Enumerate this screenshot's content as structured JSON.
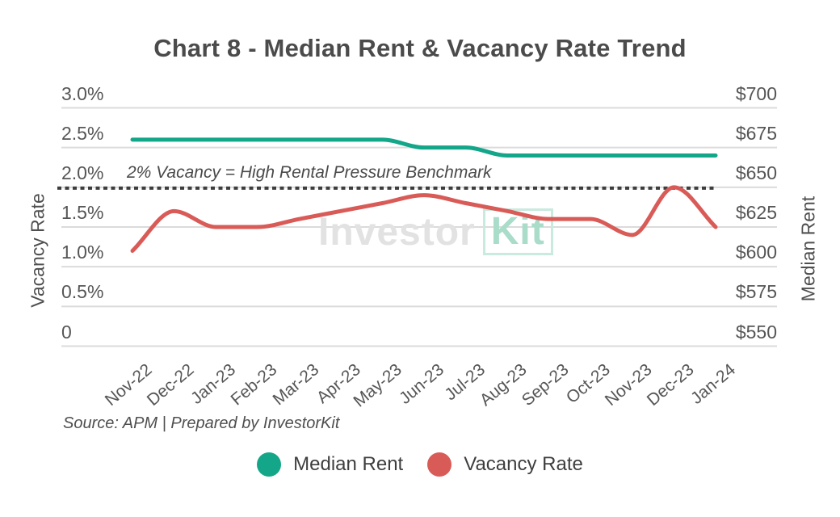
{
  "title": "Chart 8 - Median Rent & Vacancy Rate Trend",
  "benchmark_label": "2% Vacancy = High Rental Pressure Benchmark",
  "source": "Source: APM | Prepared by InvestorKit",
  "watermark": {
    "part1": "Investor",
    "part2": "Kit"
  },
  "left_axis": {
    "title": "Vacancy Rate",
    "ticks": [
      "3.0%",
      "2.5%",
      "2.0%",
      "1.5%",
      "1.0%",
      "0.5%",
      "0"
    ]
  },
  "right_axis": {
    "title": "Median Rent",
    "ticks": [
      "$700",
      "$675",
      "$650",
      "$625",
      "$600",
      "$575",
      "$550"
    ]
  },
  "legend": [
    {
      "label": "Median Rent",
      "color": "#13a689"
    },
    {
      "label": "Vacancy Rate",
      "color": "#d95b57"
    }
  ],
  "colors": {
    "median_rent_line": "#13a689",
    "vacancy_rate_line": "#d95b57",
    "benchmark_line": "#3d3d3d",
    "gridline": "#dbdbdb",
    "heading_text": "#4b4b4b",
    "tick_text": "#565656"
  },
  "chart_data": {
    "type": "line",
    "categories": [
      "Nov-22",
      "Dec-22",
      "Jan-23",
      "Feb-23",
      "Mar-23",
      "Apr-23",
      "May-23",
      "Jun-23",
      "Jul-23",
      "Aug-23",
      "Sep-23",
      "Oct-23",
      "Nov-23",
      "Dec-23",
      "Jan-24"
    ],
    "series": [
      {
        "name": "Median Rent",
        "axis": "right",
        "color": "#13a689",
        "values": [
          680,
          680,
          680,
          680,
          680,
          680,
          680,
          675,
          675,
          670,
          670,
          670,
          670,
          670,
          670
        ]
      },
      {
        "name": "Vacancy Rate",
        "axis": "left",
        "color": "#d95b57",
        "values": [
          1.2,
          1.7,
          1.5,
          1.5,
          1.6,
          1.7,
          1.8,
          1.9,
          1.8,
          1.7,
          1.6,
          1.6,
          1.4,
          2.0,
          1.5
        ]
      }
    ],
    "left_axis_label": "Vacancy Rate",
    "right_axis_label": "Median Rent",
    "left_axis_range": [
      0,
      3
    ],
    "right_axis_range": [
      550,
      700
    ],
    "left_tick_step": 0.5,
    "right_tick_step": 25,
    "benchmark": {
      "value": 2.0,
      "axis": "left",
      "style": "dotted",
      "label": "2% Vacancy = High Rental Pressure Benchmark"
    },
    "grid": true,
    "smooth": true,
    "legend_position": "bottom",
    "title": "Chart 8 - Median Rent & Vacancy Rate Trend",
    "source": "Source: APM | Prepared by InvestorKit"
  }
}
